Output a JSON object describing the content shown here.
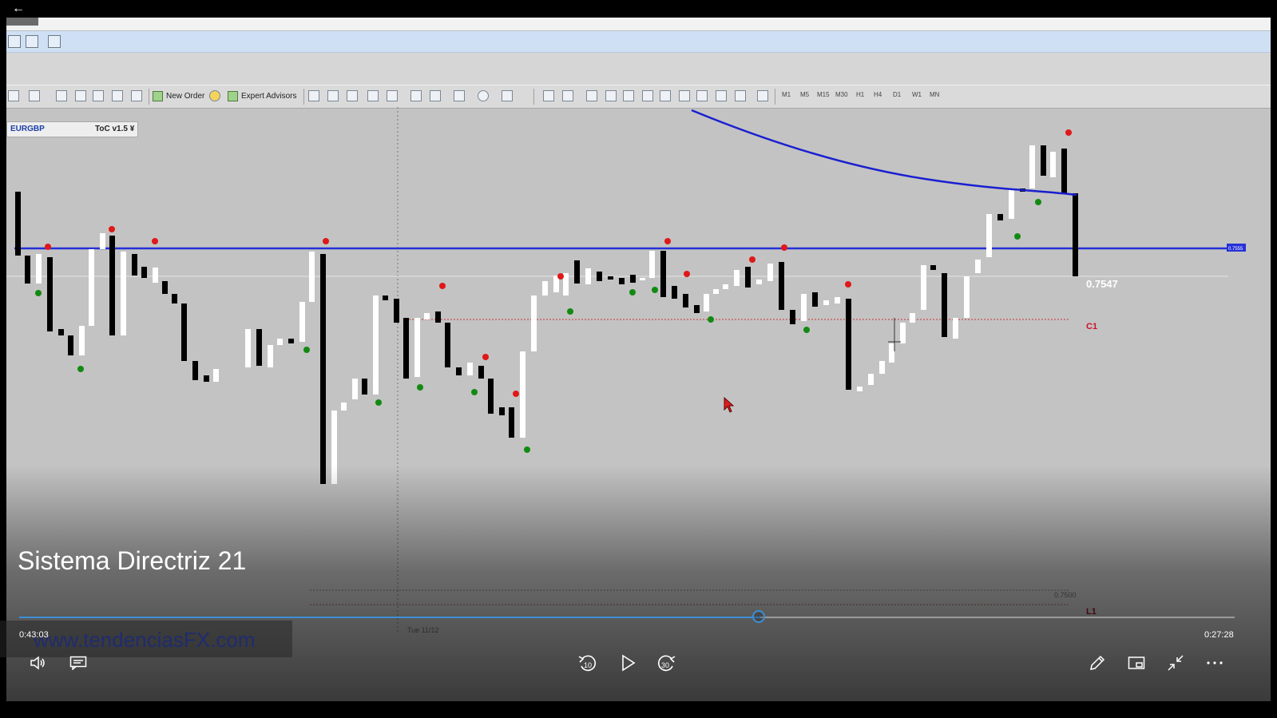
{
  "player": {
    "title": "Sistema Directriz 21",
    "elapsed": "0:43:03",
    "remaining": "0:27:28",
    "progress_fraction": 0.61,
    "watermark": "www.tendenciasFX.com"
  },
  "toolbar": {
    "new_order_label": "New Order",
    "expert_advisors_label": "Expert Advisors",
    "timeframes": [
      "M1",
      "M5",
      "M15",
      "M30",
      "H1",
      "H4",
      "D1",
      "W1",
      "MN"
    ]
  },
  "chart": {
    "symbol": "EURGBP",
    "indicator": "ToC v1.5 ¥",
    "price_label": "0.7547",
    "level_c1": "C1",
    "level_l1": "L1",
    "faint_price": "0.7500",
    "faint_date": "Tue 11/12",
    "blue_tag": "0.7555"
  },
  "icons": {
    "back": "back-arrow-icon",
    "volume": "volume-icon",
    "captions": "captions-icon",
    "rewind": "rewind-10-icon",
    "play": "play-icon",
    "forward": "forward-30-icon",
    "draw": "pen-icon",
    "miniview": "miniview-icon",
    "exit_fullscreen": "exit-fullscreen-icon",
    "more": "more-options-icon"
  },
  "colors": {
    "progress": "#3c8fd6",
    "ma_line": "#1a1fd0",
    "level_line": "#2430d8",
    "sell_dot": "#e01818",
    "buy_dot": "#128a12",
    "c1_label": "#d0102a"
  }
}
